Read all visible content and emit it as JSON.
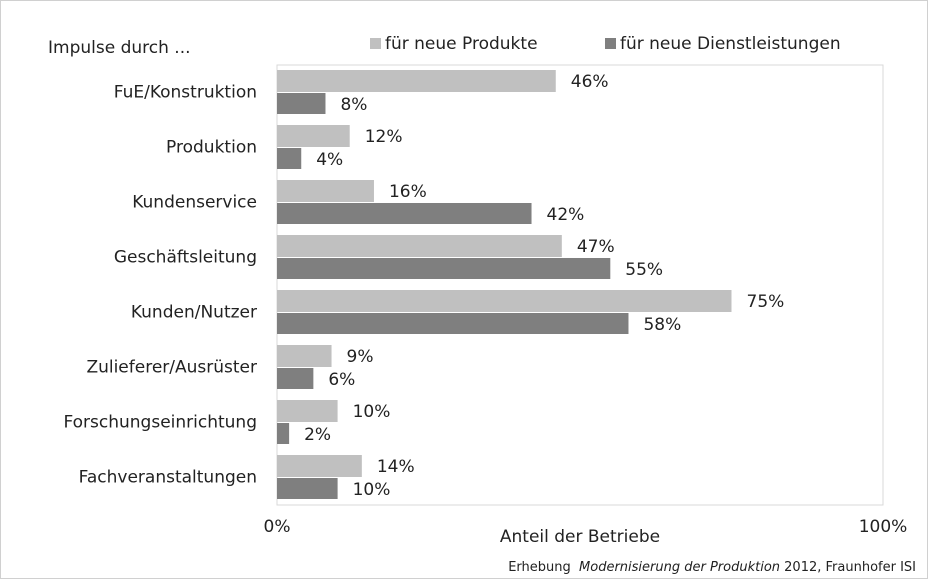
{
  "chart_data": {
    "type": "bar",
    "orientation": "horizontal",
    "y_label": "Impulse durch ...",
    "x_label": "Anteil der Betriebe",
    "source": [
      "Erhebung  ",
      "Modernisierung der Produktion",
      " 2012, Fraunhofer ISI"
    ],
    "categories": [
      "FuE/Konstruktion",
      "Produktion",
      "Kundenservice",
      "Geschäftsleitung",
      "Kunden/Nutzer",
      "Zulieferer/Ausrüster",
      "Forschungseinrichtung",
      "Fachveranstaltungen"
    ],
    "series": [
      {
        "name": "für neue Produkte",
        "color": "#c0c0c0",
        "values": [
          46,
          12,
          16,
          47,
          75,
          9,
          10,
          14
        ],
        "value_labels": [
          "46%",
          "12%",
          "16%",
          "47%",
          "75%",
          "9%",
          "10%",
          "14%"
        ]
      },
      {
        "name": "für neue Dienstleistungen",
        "color": "#7f7f7f",
        "values": [
          8,
          4,
          42,
          55,
          58,
          6,
          2,
          10
        ],
        "value_labels": [
          "8%",
          "4%",
          "42%",
          "55%",
          "58%",
          "6%",
          "2%",
          "10%"
        ]
      }
    ],
    "xlim": [
      0,
      100
    ],
    "xticks": [
      {
        "value": 0,
        "label": "0%"
      },
      {
        "value": 100,
        "label": "100%"
      }
    ],
    "legend": "top"
  }
}
